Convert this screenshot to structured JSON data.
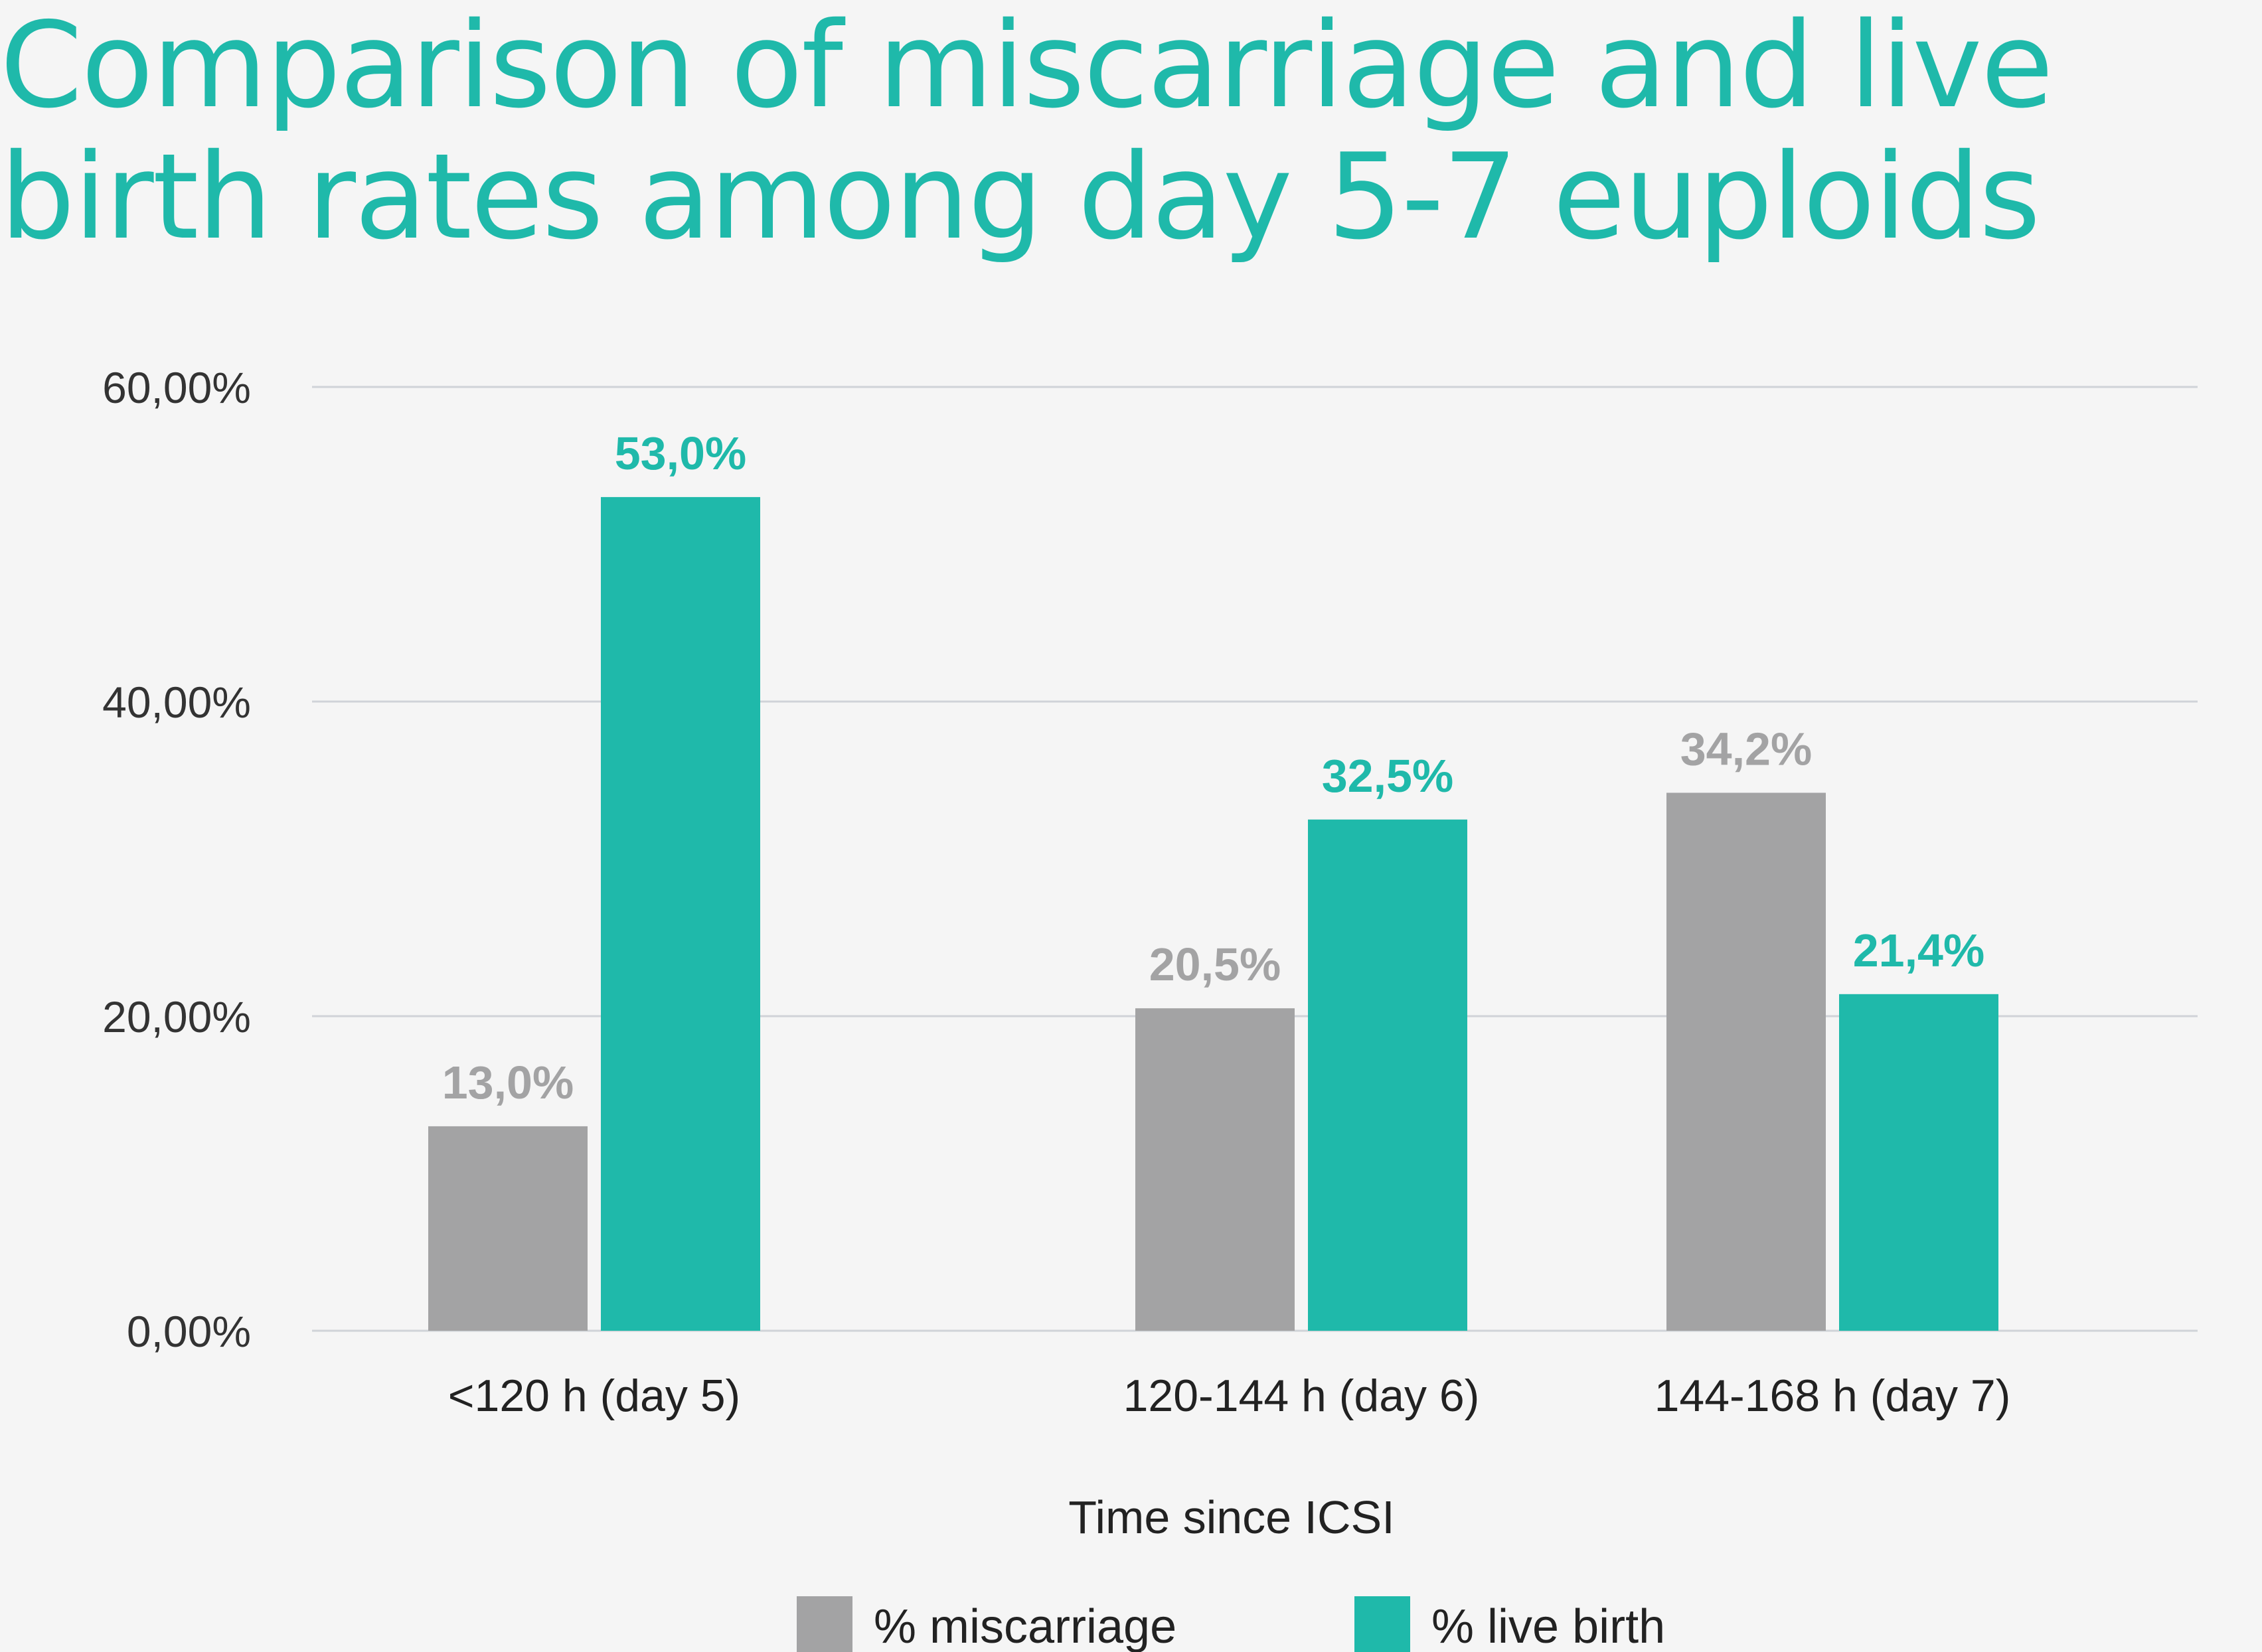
{
  "chart_data": {
    "type": "bar",
    "title": "Comparison of miscarriage and live birth rates among day 5-7 euploids",
    "xlabel": "Time since ICSI",
    "ylabel": "",
    "ylim": [
      0,
      60
    ],
    "y_ticks": [
      "0,00%",
      "20,00%",
      "40,00%",
      "60,00%"
    ],
    "y_tick_values": [
      0,
      20,
      40,
      60
    ],
    "grid": true,
    "legend_position": "bottom",
    "categories": [
      "<120 h (day 5)",
      "120-144 h (day 6)",
      "144-168 h (day 7)"
    ],
    "series": [
      {
        "name": "% miscarriage",
        "color": "#a3a3a4",
        "values": [
          13.0,
          20.5,
          34.2
        ],
        "labels": [
          "13,0%",
          "20,5%",
          "34,2%"
        ]
      },
      {
        "name": "% live birth",
        "color": "#1fb9aa",
        "values": [
          53.0,
          32.5,
          21.4
        ],
        "labels": [
          "53,0%",
          "32,5%",
          "21,4%"
        ]
      }
    ]
  }
}
